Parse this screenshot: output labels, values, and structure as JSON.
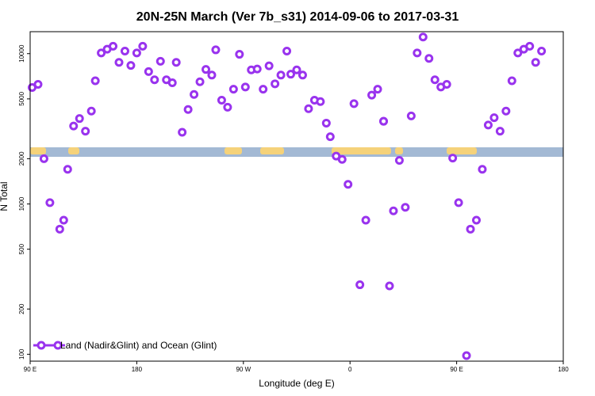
{
  "chart_data": {
    "type": "scatter",
    "title": "20N-25N March (Ver 7b_s31)   2014-09-06 to 2017-03-31",
    "xlabel": "Longitude (deg E)",
    "ylabel": "N Total",
    "xlim": [
      -90,
      180
    ],
    "ylim": [
      90,
      14000
    ],
    "yscale": "log",
    "x_tick_values": [
      -90,
      -36,
      18,
      72,
      126,
      180
    ],
    "x_tick_labels": [
      "90 E",
      "180",
      "90 W",
      "0",
      "90 E",
      "180"
    ],
    "y_tick_values": [
      100,
      200,
      500,
      1000,
      2000,
      5000,
      10000
    ],
    "y_tick_labels": [
      "100",
      "200",
      "500",
      "1000",
      "2000",
      "5000",
      "10000"
    ],
    "marker_color": "#9933ee",
    "band_colors": {
      "ocean": "#a3b9d4",
      "land": "#f5d27a"
    },
    "legend": {
      "label": "Land (Nadir&Glint) and Ocean (Glint)",
      "position": "bottom-left"
    },
    "series": [
      {
        "name": "Land (Nadir&Glint) and Ocean (Glint)",
        "points": [
          {
            "x": -89,
            "y": 5950
          },
          {
            "x": -86,
            "y": 6250
          },
          {
            "x": -83,
            "y": 2000
          },
          {
            "x": -80,
            "y": 1020
          },
          {
            "x": -75,
            "y": 680
          },
          {
            "x": -73,
            "y": 780
          },
          {
            "x": -71,
            "y": 1700
          },
          {
            "x": -68,
            "y": 3300
          },
          {
            "x": -65,
            "y": 3700
          },
          {
            "x": -62,
            "y": 3050
          },
          {
            "x": -59,
            "y": 4150
          },
          {
            "x": -57,
            "y": 6600
          },
          {
            "x": -54,
            "y": 10100
          },
          {
            "x": -51,
            "y": 10700
          },
          {
            "x": -48,
            "y": 11200
          },
          {
            "x": -45,
            "y": 8750
          },
          {
            "x": -42,
            "y": 10400
          },
          {
            "x": -39,
            "y": 8350
          },
          {
            "x": -36,
            "y": 10100
          },
          {
            "x": -33,
            "y": 11200
          },
          {
            "x": -30,
            "y": 7600
          },
          {
            "x": -27,
            "y": 6700
          },
          {
            "x": -24,
            "y": 8900
          },
          {
            "x": -21,
            "y": 6700
          },
          {
            "x": -18,
            "y": 6400
          },
          {
            "x": -16,
            "y": 8750
          },
          {
            "x": -13,
            "y": 3000
          },
          {
            "x": -10,
            "y": 4250
          },
          {
            "x": -7,
            "y": 5350
          },
          {
            "x": -4,
            "y": 6500
          },
          {
            "x": -1,
            "y": 7850
          },
          {
            "x": 2,
            "y": 7200
          },
          {
            "x": 4,
            "y": 10600
          },
          {
            "x": 7,
            "y": 4900
          },
          {
            "x": 10,
            "y": 4400
          },
          {
            "x": 13,
            "y": 5800
          },
          {
            "x": 16,
            "y": 9900
          },
          {
            "x": 19,
            "y": 6000
          },
          {
            "x": 22,
            "y": 7800
          },
          {
            "x": 25,
            "y": 7900
          },
          {
            "x": 28,
            "y": 5800
          },
          {
            "x": 31,
            "y": 8300
          },
          {
            "x": 34,
            "y": 6300
          },
          {
            "x": 37,
            "y": 7200
          },
          {
            "x": 40,
            "y": 10400
          },
          {
            "x": 42,
            "y": 7300
          },
          {
            "x": 45,
            "y": 7800
          },
          {
            "x": 48,
            "y": 7200
          },
          {
            "x": 51,
            "y": 4300
          },
          {
            "x": 54,
            "y": 4900
          },
          {
            "x": 57,
            "y": 4800
          },
          {
            "x": 60,
            "y": 3450
          },
          {
            "x": 62,
            "y": 2800
          },
          {
            "x": 65,
            "y": 2080
          },
          {
            "x": 68,
            "y": 1980
          },
          {
            "x": 71,
            "y": 1350
          },
          {
            "x": 74,
            "y": 4650
          },
          {
            "x": 77,
            "y": 290
          },
          {
            "x": 80,
            "y": 780
          },
          {
            "x": 83,
            "y": 5300
          },
          {
            "x": 86,
            "y": 5800
          },
          {
            "x": 89,
            "y": 3550
          },
          {
            "x": 89,
            "y": 3550
          },
          {
            "x": 92,
            "y": 285
          },
          {
            "x": 94,
            "y": 900
          },
          {
            "x": 97,
            "y": 1950
          },
          {
            "x": 100,
            "y": 950
          },
          {
            "x": 103,
            "y": 3850
          },
          {
            "x": 106,
            "y": 10100
          },
          {
            "x": 109,
            "y": 12900
          },
          {
            "x": 112,
            "y": 9300
          },
          {
            "x": 115,
            "y": 6700
          },
          {
            "x": 118,
            "y": 6000
          },
          {
            "x": 121,
            "y": 6250
          },
          {
            "x": 124,
            "y": 2020
          },
          {
            "x": 127,
            "y": 1020
          },
          {
            "x": 131,
            "y": 98
          },
          {
            "x": 133,
            "y": 680
          },
          {
            "x": 136,
            "y": 780
          },
          {
            "x": 139,
            "y": 1700
          },
          {
            "x": 142,
            "y": 3350
          },
          {
            "x": 145,
            "y": 3750
          },
          {
            "x": 148,
            "y": 3050
          },
          {
            "x": 151,
            "y": 4150
          },
          {
            "x": 154,
            "y": 6600
          },
          {
            "x": 157,
            "y": 10100
          },
          {
            "x": 160,
            "y": 10700
          },
          {
            "x": 163,
            "y": 11200
          },
          {
            "x": 166,
            "y": 8750
          },
          {
            "x": 169,
            "y": 10400
          }
        ]
      }
    ]
  }
}
